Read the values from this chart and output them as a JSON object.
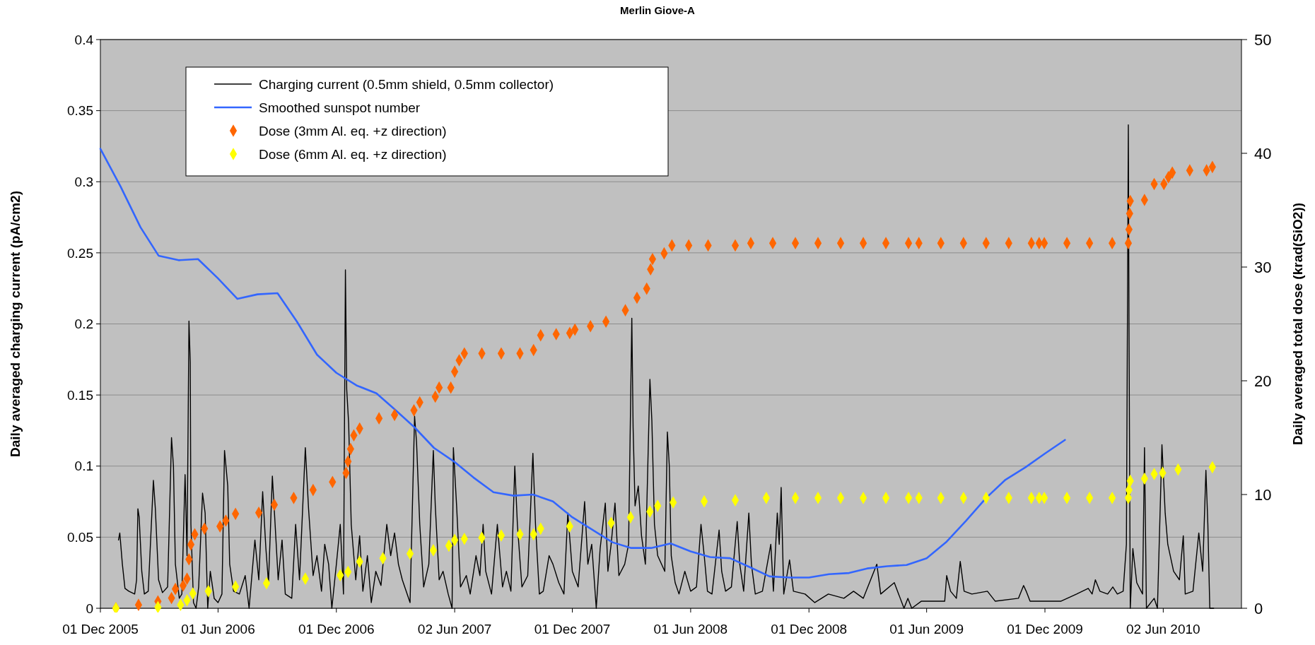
{
  "chart_data": {
    "type": "line",
    "title": "Merlin Giove-A",
    "ylabel": "Daily averaged charging current (pA/cm2)",
    "y2label": "Daily averaged total dose (krad(SiO2))",
    "xlim": [
      "2005-12-01",
      "2010-10-01"
    ],
    "xticks": [
      {
        "value": "2005-12-01",
        "label": "01 Dec 2005"
      },
      {
        "value": "2006-06-01",
        "label": "01 Jun 2006"
      },
      {
        "value": "2006-12-01",
        "label": "01 Dec 2006"
      },
      {
        "value": "2007-06-02",
        "label": "02 Jun 2007"
      },
      {
        "value": "2007-12-01",
        "label": "01 Dec 2007"
      },
      {
        "value": "2008-06-01",
        "label": "01 Jun 2008"
      },
      {
        "value": "2008-12-01",
        "label": "01 Dec 2008"
      },
      {
        "value": "2009-06-01",
        "label": "01 Jun 2009"
      },
      {
        "value": "2009-12-01",
        "label": "01 Dec 2009"
      },
      {
        "value": "2010-06-02",
        "label": "02 Jun 2010"
      }
    ],
    "ylim": [
      0,
      0.4
    ],
    "yticks": [
      0,
      0.05,
      0.1,
      0.15,
      0.2,
      0.25,
      0.3,
      0.35,
      0.4
    ],
    "y2lim": [
      0,
      50
    ],
    "y2ticks": [
      0,
      10,
      20,
      30,
      40,
      50
    ],
    "grid": "y",
    "legend": "top left",
    "series": [
      {
        "name": "Charging current (0.5mm shield, 0.5mm collector)",
        "color": "#000000",
        "x": [
          "2005-12-29",
          "2005-12-31",
          "2006-01-04",
          "2006-01-08",
          "2006-01-14",
          "2006-01-23",
          "2006-01-26",
          "2006-01-28",
          "2006-01-30",
          "2006-02-03",
          "2006-02-07",
          "2006-02-13",
          "2006-02-21",
          "2006-02-24",
          "2006-03-01",
          "2006-03-07",
          "2006-03-15",
          "2006-03-21",
          "2006-03-24",
          "2006-03-27",
          "2006-04-02",
          "2006-04-06",
          "2006-04-11",
          "2006-04-14",
          "2006-04-17",
          "2006-04-19",
          "2006-04-20",
          "2006-04-24",
          "2006-04-28",
          "2006-05-02",
          "2006-05-08",
          "2006-05-12",
          "2006-05-16",
          "2006-05-20",
          "2006-05-26",
          "2006-06-01",
          "2006-06-07",
          "2006-06-11",
          "2006-06-16",
          "2006-06-19",
          "2006-06-25",
          "2006-07-04",
          "2006-07-13",
          "2006-07-19",
          "2006-07-28",
          "2006-08-03",
          "2006-08-09",
          "2006-08-14",
          "2006-08-18",
          "2006-08-24",
          "2006-08-28",
          "2006-09-02",
          "2006-09-08",
          "2006-09-13",
          "2006-09-23",
          "2006-09-29",
          "2006-10-05",
          "2006-10-14",
          "2006-10-19",
          "2006-10-26",
          "2006-11-01",
          "2006-11-08",
          "2006-11-13",
          "2006-11-19",
          "2006-11-24",
          "2006-12-01",
          "2006-12-07",
          "2006-12-12",
          "2006-12-15",
          "2006-12-17",
          "2006-12-20",
          "2006-12-24",
          "2006-12-31",
          "2007-01-06",
          "2007-01-11",
          "2007-01-18",
          "2007-01-24",
          "2007-01-31",
          "2007-02-08",
          "2007-02-17",
          "2007-02-23",
          "2007-03-01",
          "2007-03-07",
          "2007-03-13",
          "2007-03-25",
          "2007-04-01",
          "2007-04-04",
          "2007-04-09",
          "2007-04-15",
          "2007-04-23",
          "2007-04-30",
          "2007-05-03",
          "2007-05-09",
          "2007-05-15",
          "2007-05-23",
          "2007-05-29",
          "2007-05-31",
          "2007-06-05",
          "2007-06-11",
          "2007-06-20",
          "2007-06-26",
          "2007-07-05",
          "2007-07-11",
          "2007-07-16",
          "2007-07-20",
          "2007-07-29",
          "2007-08-07",
          "2007-08-15",
          "2007-08-21",
          "2007-08-28",
          "2007-09-03",
          "2007-09-07",
          "2007-09-14",
          "2007-09-23",
          "2007-10-01",
          "2007-10-05",
          "2007-10-11",
          "2007-10-17",
          "2007-10-26",
          "2007-11-01",
          "2007-11-10",
          "2007-11-18",
          "2007-11-24",
          "2007-12-01",
          "2007-12-10",
          "2007-12-20",
          "2007-12-25",
          "2007-12-31",
          "2008-01-07",
          "2008-01-13",
          "2008-01-21",
          "2008-01-25",
          "2008-01-30",
          "2008-02-05",
          "2008-02-11",
          "2008-02-20",
          "2008-02-26",
          "2008-03-02",
          "2008-03-04",
          "2008-03-07",
          "2008-03-12",
          "2008-03-17",
          "2008-03-23",
          "2008-03-30",
          "2008-04-02",
          "2008-04-06",
          "2008-04-11",
          "2008-04-22",
          "2008-04-26",
          "2008-04-29",
          "2008-05-02",
          "2008-05-08",
          "2008-05-14",
          "2008-05-23",
          "2008-06-01",
          "2008-06-10",
          "2008-06-17",
          "2008-06-22",
          "2008-06-27",
          "2008-07-04",
          "2008-07-15",
          "2008-07-19",
          "2008-07-25",
          "2008-08-03",
          "2008-08-12",
          "2008-08-16",
          "2008-08-22",
          "2008-08-30",
          "2008-09-03",
          "2008-09-09",
          "2008-09-20",
          "2008-10-03",
          "2008-10-07",
          "2008-10-13",
          "2008-10-16",
          "2008-10-19",
          "2008-10-23",
          "2008-11-01",
          "2008-11-07",
          "2008-11-25",
          "2008-12-10",
          "2008-12-31",
          "2009-01-24",
          "2009-02-08",
          "2009-02-23",
          "2009-03-16",
          "2009-03-22",
          "2009-04-12",
          "2009-04-27",
          "2009-05-03",
          "2009-05-09",
          "2009-05-24",
          "2009-06-29",
          "2009-07-02",
          "2009-07-08",
          "2009-07-17",
          "2009-07-23",
          "2009-07-29",
          "2009-08-10",
          "2009-09-03",
          "2009-09-15",
          "2009-10-21",
          "2009-10-29",
          "2009-11-02",
          "2009-11-08",
          "2009-12-26",
          "2010-01-19",
          "2010-02-06",
          "2010-02-12",
          "2010-02-17",
          "2010-02-24",
          "2010-03-08",
          "2010-03-16",
          "2010-03-23",
          "2010-04-01",
          "2010-04-06",
          "2010-04-09",
          "2010-04-10",
          "2010-04-12",
          "2010-04-16",
          "2010-04-22",
          "2010-05-01",
          "2010-05-04",
          "2010-05-07",
          "2010-05-19",
          "2010-05-24",
          "2010-05-31",
          "2010-06-05",
          "2010-06-09",
          "2010-06-18",
          "2010-06-27",
          "2010-07-03",
          "2010-07-06",
          "2010-07-18",
          "2010-07-27",
          "2010-08-02",
          "2010-08-07",
          "2010-08-10",
          "2010-08-13",
          "2010-08-19"
        ],
        "values": [
          0.048,
          0.053,
          0.031,
          0.014,
          0.012,
          0.01,
          0.02,
          0.07,
          0.064,
          0.026,
          0.01,
          0.012,
          0.09,
          0.07,
          0.02,
          0.011,
          0.015,
          0.12,
          0.1,
          0.031,
          0.007,
          0.01,
          0.094,
          0.037,
          0.202,
          0.173,
          0.059,
          0.004,
          0,
          0.015,
          0.081,
          0.067,
          0,
          0.026,
          0.007,
          0.004,
          0.01,
          0.111,
          0.086,
          0.031,
          0.012,
          0.01,
          0.023,
          0,
          0.048,
          0.02,
          0.082,
          0.042,
          0.018,
          0.093,
          0.061,
          0.02,
          0.048,
          0.01,
          0.007,
          0.059,
          0.02,
          0.113,
          0.07,
          0.023,
          0.037,
          0.012,
          0.045,
          0.031,
          0,
          0.031,
          0.059,
          0.01,
          0.238,
          0.154,
          0.13,
          0.059,
          0.02,
          0.051,
          0.012,
          0.037,
          0.004,
          0.026,
          0.016,
          0.059,
          0.037,
          0.053,
          0.031,
          0.02,
          0.004,
          0.135,
          0.117,
          0.059,
          0.015,
          0.031,
          0.111,
          0.072,
          0.02,
          0.026,
          0.01,
          0,
          0.113,
          0.072,
          0.015,
          0.023,
          0.01,
          0.037,
          0.023,
          0.059,
          0.026,
          0.01,
          0.059,
          0.015,
          0.026,
          0.012,
          0.1,
          0.059,
          0.015,
          0.023,
          0.109,
          0.059,
          0.01,
          0.012,
          0.037,
          0.031,
          0.018,
          0.01,
          0.067,
          0.026,
          0.015,
          0.075,
          0.031,
          0.045,
          0,
          0.042,
          0.074,
          0.026,
          0.045,
          0.074,
          0.023,
          0.031,
          0.045,
          0.204,
          0.127,
          0.072,
          0.086,
          0.051,
          0.031,
          0.161,
          0.132,
          0.059,
          0.037,
          0.026,
          0.124,
          0.1,
          0.037,
          0.018,
          0.01,
          0.026,
          0.012,
          0.015,
          0.059,
          0.037,
          0.012,
          0.01,
          0.055,
          0.026,
          0.012,
          0.015,
          0.061,
          0.031,
          0.012,
          0.067,
          0.031,
          0.01,
          0.012,
          0.045,
          0.012,
          0.067,
          0.045,
          0.085,
          0.01,
          0.034,
          0.012,
          0.01,
          0.004,
          0.01,
          0.007,
          0.012,
          0.007,
          0.031,
          0.01,
          0.018,
          0,
          0.007,
          0,
          0.005,
          0.005,
          0.023,
          0.012,
          0.007,
          0.033,
          0.012,
          0.01,
          0.012,
          0.005,
          0.007,
          0.016,
          0.012,
          0.005,
          0.005,
          0.01,
          0.014,
          0.01,
          0.02,
          0.012,
          0.01,
          0.015,
          0.01,
          0.012,
          0.045,
          0.34,
          0.201,
          0,
          0.042,
          0.018,
          0.01,
          0.113,
          0,
          0.007,
          0,
          0.115,
          0.067,
          0.045,
          0.026,
          0.02,
          0.051,
          0.01,
          0.012,
          0.053,
          0.026,
          0.097,
          0.059,
          0,
          0
        ]
      },
      {
        "name": "Smoothed sunspot number",
        "axis": "y2",
        "color": "#3366ff",
        "x": [
          "2005-12-01",
          "2006-01-01",
          "2006-02-01",
          "2006-03-01",
          "2006-04-01",
          "2006-05-01",
          "2006-06-01",
          "2006-07-01",
          "2006-08-01",
          "2006-09-01",
          "2006-10-01",
          "2006-11-01",
          "2006-12-01",
          "2007-01-01",
          "2007-02-01",
          "2007-03-01",
          "2007-04-01",
          "2007-05-01",
          "2007-06-01",
          "2007-07-01",
          "2007-08-01",
          "2007-09-01",
          "2007-10-01",
          "2007-11-01",
          "2007-12-01",
          "2008-01-01",
          "2008-02-01",
          "2008-03-01",
          "2008-04-01",
          "2008-05-01",
          "2008-06-01",
          "2008-07-01",
          "2008-08-01",
          "2008-09-01",
          "2008-10-01",
          "2008-11-01",
          "2008-12-01",
          "2009-01-01",
          "2009-02-01",
          "2009-03-01",
          "2009-04-01",
          "2009-05-01",
          "2009-06-01",
          "2009-07-01",
          "2009-08-01",
          "2009-09-01",
          "2009-10-01",
          "2009-11-01",
          "2009-12-01",
          "2010-01-01"
        ],
        "values": [
          40.4,
          37.1,
          33.5,
          31.0,
          30.6,
          30.7,
          29.0,
          27.2,
          27.6,
          27.7,
          25.2,
          22.3,
          20.7,
          19.6,
          18.9,
          17.5,
          15.9,
          14.1,
          12.9,
          11.5,
          10.2,
          9.9,
          10.0,
          9.4,
          8.0,
          6.9,
          5.8,
          5.3,
          5.3,
          5.7,
          5.0,
          4.5,
          4.4,
          3.6,
          2.8,
          2.7,
          2.7,
          3.0,
          3.1,
          3.5,
          3.7,
          3.8,
          4.4,
          5.8,
          7.7,
          9.7,
          11.3,
          12.4,
          13.6,
          14.8
        ]
      },
      {
        "name": "Dose (3mm Al. eq. +z direction)",
        "type": "scatter",
        "axis": "y2",
        "marker": "diamond",
        "color": "#ff6600",
        "x": [
          "2005-12-25",
          "2006-01-29",
          "2006-02-28",
          "2006-03-21",
          "2006-03-27",
          "2006-04-08",
          "2006-04-14",
          "2006-04-17",
          "2006-04-20",
          "2006-04-26",
          "2006-05-11",
          "2006-06-04",
          "2006-06-13",
          "2006-06-28",
          "2006-08-03",
          "2006-08-27",
          "2006-09-26",
          "2006-10-26",
          "2006-11-25",
          "2006-12-16",
          "2006-12-19",
          "2006-12-23",
          "2006-12-28",
          "2007-01-06",
          "2007-02-05",
          "2007-03-01",
          "2007-03-31",
          "2007-04-09",
          "2007-05-03",
          "2007-05-09",
          "2007-05-27",
          "2007-06-02",
          "2007-06-09",
          "2007-06-17",
          "2007-07-14",
          "2007-08-13",
          "2007-09-11",
          "2007-10-02",
          "2007-10-13",
          "2007-11-06",
          "2007-11-27",
          "2007-12-05",
          "2007-12-29",
          "2008-01-22",
          "2008-02-21",
          "2008-03-10",
          "2008-03-25",
          "2008-03-31",
          "2008-04-03",
          "2008-04-21",
          "2008-05-03",
          "2008-05-29",
          "2008-06-28",
          "2008-08-09",
          "2008-09-02",
          "2008-10-06",
          "2008-11-10",
          "2008-12-15",
          "2009-01-19",
          "2009-02-23",
          "2009-03-30",
          "2009-05-04",
          "2009-05-20",
          "2009-06-23",
          "2009-07-28",
          "2009-09-01",
          "2009-10-06",
          "2009-11-10",
          "2009-11-22",
          "2009-11-30",
          "2010-01-04",
          "2010-02-08",
          "2010-03-15",
          "2010-04-09",
          "2010-04-10",
          "2010-04-11",
          "2010-04-12",
          "2010-05-04",
          "2010-05-19",
          "2010-06-03",
          "2010-06-10",
          "2010-06-16",
          "2010-07-13",
          "2010-08-08",
          "2010-08-17"
        ],
        "values": [
          0,
          0.3,
          0.6,
          0.9,
          1.7,
          2.0,
          2.6,
          4.3,
          5.6,
          6.5,
          7.0,
          7.2,
          7.7,
          8.3,
          8.4,
          9.1,
          9.7,
          10.4,
          11.1,
          11.9,
          12.9,
          14.0,
          15.2,
          15.8,
          16.7,
          17.0,
          17.4,
          18.1,
          18.6,
          19.4,
          19.4,
          20.8,
          21.8,
          22.4,
          22.4,
          22.4,
          22.4,
          22.7,
          24.0,
          24.1,
          24.2,
          24.5,
          24.8,
          25.2,
          26.2,
          27.3,
          28.1,
          29.8,
          30.7,
          31.2,
          31.9,
          31.9,
          31.9,
          31.9,
          32.1,
          32.1,
          32.1,
          32.1,
          32.1,
          32.1,
          32.1,
          32.1,
          32.1,
          32.1,
          32.1,
          32.1,
          32.1,
          32.1,
          32.1,
          32.1,
          32.1,
          32.1,
          32.1,
          32.1,
          33.3,
          34.7,
          35.8,
          35.9,
          37.3,
          37.3,
          37.9,
          38.3,
          38.5,
          38.5,
          38.8
        ]
      },
      {
        "name": "Dose (6mm Al. eq. +z direction)",
        "type": "scatter",
        "axis": "y2",
        "marker": "diamond",
        "color": "#ffff00",
        "x": [
          "2005-12-25",
          "2006-02-28",
          "2006-04-04",
          "2006-04-14",
          "2006-04-23",
          "2006-05-17",
          "2006-06-28",
          "2006-08-15",
          "2006-10-14",
          "2006-12-07",
          "2006-12-19",
          "2007-01-06",
          "2007-02-11",
          "2007-03-25",
          "2007-04-30",
          "2007-05-24",
          "2007-06-02",
          "2007-06-17",
          "2007-07-14",
          "2007-08-13",
          "2007-09-11",
          "2007-10-02",
          "2007-10-13",
          "2007-11-27",
          "2008-01-30",
          "2008-02-29",
          "2008-03-30",
          "2008-04-11",
          "2008-05-05",
          "2008-06-22",
          "2008-08-09",
          "2008-09-26",
          "2008-11-10",
          "2008-12-15",
          "2009-01-19",
          "2009-02-23",
          "2009-03-30",
          "2009-05-04",
          "2009-05-20",
          "2009-06-23",
          "2009-07-28",
          "2009-09-01",
          "2009-10-06",
          "2009-11-10",
          "2009-11-22",
          "2009-11-30",
          "2010-01-04",
          "2010-02-08",
          "2010-03-15",
          "2010-04-09",
          "2010-04-10",
          "2010-04-12",
          "2010-05-04",
          "2010-05-19",
          "2010-06-01",
          "2010-06-25",
          "2010-08-17"
        ],
        "values": [
          0,
          0.1,
          0.3,
          0.7,
          1.3,
          1.5,
          1.9,
          2.2,
          2.6,
          2.9,
          3.2,
          4.1,
          4.4,
          4.8,
          5.1,
          5.5,
          6.0,
          6.1,
          6.2,
          6.4,
          6.5,
          6.5,
          7.0,
          7.2,
          7.5,
          8.0,
          8.5,
          9.0,
          9.3,
          9.4,
          9.5,
          9.7,
          9.7,
          9.7,
          9.7,
          9.7,
          9.7,
          9.7,
          9.7,
          9.7,
          9.7,
          9.7,
          9.7,
          9.7,
          9.7,
          9.7,
          9.7,
          9.7,
          9.7,
          9.7,
          10.4,
          11.2,
          11.4,
          11.8,
          11.9,
          12.2,
          12.4
        ]
      }
    ]
  }
}
